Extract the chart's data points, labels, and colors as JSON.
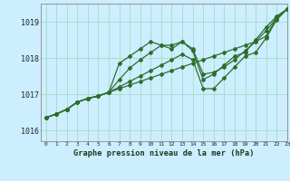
{
  "title": "Graphe pression niveau de la mer (hPa)",
  "bg_color": "#cceeff",
  "grid_color": "#aaddcc",
  "line_color": "#2d6e2d",
  "xlim": [
    -0.5,
    23
  ],
  "ylim": [
    1015.7,
    1019.5
  ],
  "yticks": [
    1016,
    1017,
    1018,
    1019
  ],
  "xticks": [
    0,
    1,
    2,
    3,
    4,
    5,
    6,
    7,
    8,
    9,
    10,
    11,
    12,
    13,
    14,
    15,
    16,
    17,
    18,
    19,
    20,
    21,
    22,
    23
  ],
  "series": [
    [
      1016.35,
      1016.45,
      1016.58,
      1016.78,
      1016.88,
      1016.95,
      1017.05,
      1017.15,
      1017.25,
      1017.35,
      1017.45,
      1017.55,
      1017.65,
      1017.75,
      1017.85,
      1017.95,
      1018.05,
      1018.15,
      1018.25,
      1018.35,
      1018.45,
      1018.6,
      1019.1,
      1019.35
    ],
    [
      1016.35,
      1016.45,
      1016.58,
      1016.78,
      1016.88,
      1016.95,
      1017.05,
      1017.4,
      1017.72,
      1017.95,
      1018.15,
      1018.35,
      1018.35,
      1018.45,
      1018.25,
      1017.55,
      1017.6,
      1017.75,
      1017.95,
      1018.2,
      1018.45,
      1018.75,
      1019.1,
      1019.35
    ],
    [
      1016.35,
      1016.45,
      1016.58,
      1016.78,
      1016.88,
      1016.95,
      1017.05,
      1017.85,
      1018.05,
      1018.25,
      1018.45,
      1018.35,
      1018.25,
      1018.45,
      1018.2,
      1017.4,
      1017.55,
      1017.8,
      1018.05,
      1018.15,
      1018.5,
      1018.85,
      1019.15,
      1019.35
    ],
    [
      1016.35,
      1016.45,
      1016.58,
      1016.78,
      1016.88,
      1016.95,
      1017.05,
      1017.2,
      1017.35,
      1017.5,
      1017.65,
      1017.8,
      1017.95,
      1018.1,
      1017.95,
      1017.15,
      1017.15,
      1017.45,
      1017.75,
      1018.05,
      1018.15,
      1018.55,
      1019.05,
      1019.35
    ]
  ]
}
